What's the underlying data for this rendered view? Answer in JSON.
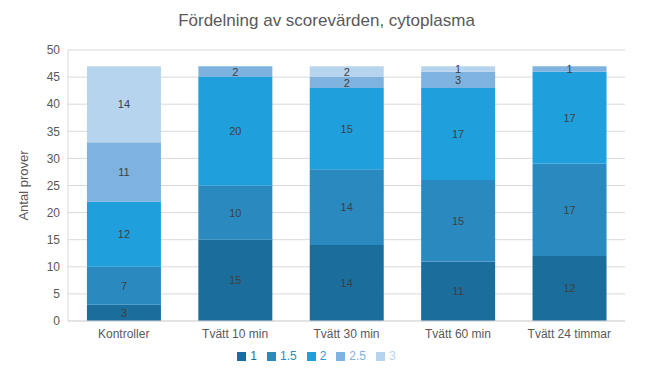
{
  "chart_data": {
    "type": "bar",
    "title": "Fördelning av scorevärden, cytoplasma",
    "y_label": "Antal prover",
    "categories": [
      "Kontroller",
      "Tvätt 10 min",
      "Tvätt 30 min",
      "Tvätt 60 min",
      "Tvätt 24 timmar"
    ],
    "series": [
      {
        "name": "1",
        "color": "#1b6e9b",
        "values": [
          3,
          15,
          14,
          11,
          12
        ]
      },
      {
        "name": "1.5",
        "color": "#2a8ac0",
        "values": [
          7,
          10,
          14,
          15,
          17
        ]
      },
      {
        "name": "2",
        "color": "#1fa0dc",
        "values": [
          12,
          20,
          15,
          17,
          17
        ]
      },
      {
        "name": "2.5",
        "color": "#7eb3df",
        "values": [
          11,
          2,
          2,
          3,
          1
        ]
      },
      {
        "name": "3",
        "color": "#b7d4ee",
        "values": [
          14,
          0,
          2,
          1,
          0
        ]
      }
    ],
    "ylim": [
      0,
      50
    ],
    "yticks": [
      0,
      5,
      10,
      15,
      20,
      25,
      30,
      35,
      40,
      45,
      50
    ],
    "grid": true,
    "stacked": true,
    "data_labels": true,
    "legend": "bottom"
  }
}
